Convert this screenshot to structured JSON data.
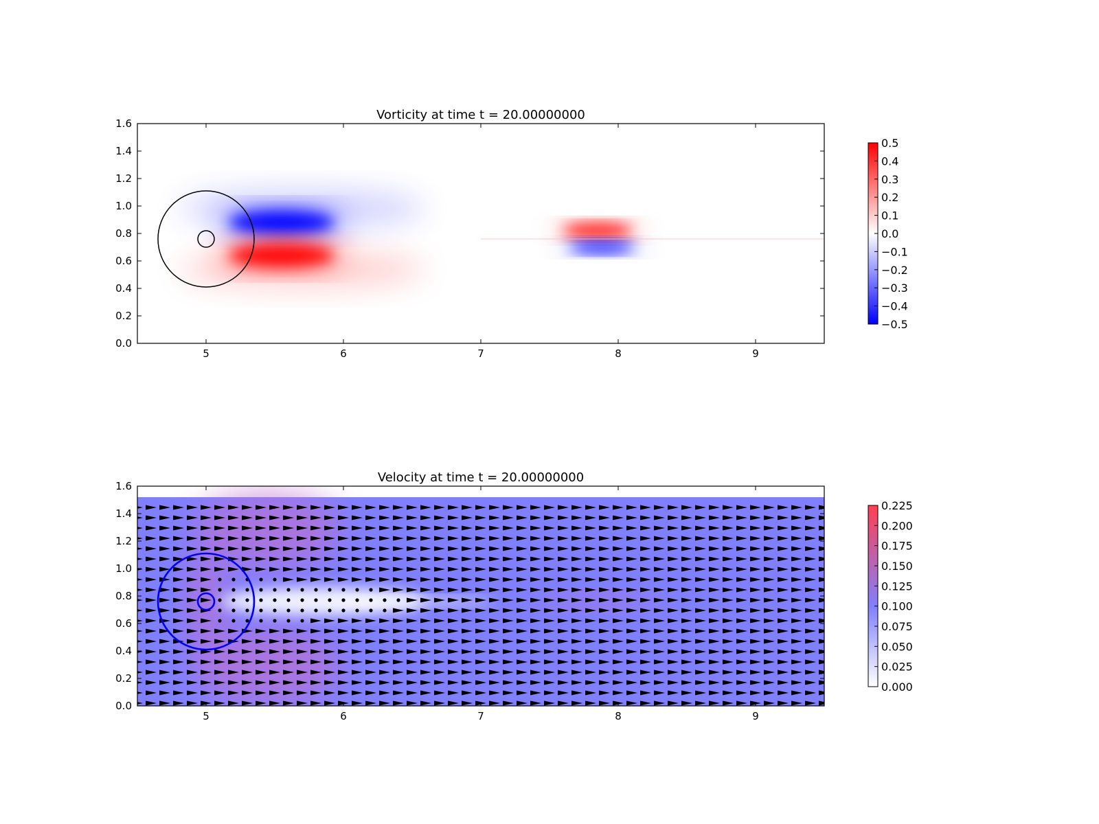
{
  "chart_data": [
    {
      "type": "heatmap",
      "title": "Vorticity at time t =    20.00000000",
      "xlim": [
        4.5,
        9.5
      ],
      "ylim": [
        0.0,
        1.6
      ],
      "xticks": [
        "5",
        "6",
        "7",
        "8",
        "9"
      ],
      "yticks": [
        "0.0",
        "0.2",
        "0.4",
        "0.6",
        "0.8",
        "1.0",
        "1.2",
        "1.4",
        "1.6"
      ],
      "colormap": "bwr",
      "colors": {
        "low": "#0000ff",
        "mid": "#ffffff",
        "high": "#ff0000"
      },
      "colorbar": {
        "range": [
          -0.5,
          0.5
        ],
        "ticks": [
          "0.5",
          "0.4",
          "0.3",
          "0.2",
          "0.1",
          "0.0",
          "−0.1",
          "−0.2",
          "−0.3",
          "−0.4",
          "−0.5"
        ]
      },
      "features": [
        {
          "kind": "vortex",
          "sign": -1,
          "x": 5.55,
          "y": 0.88,
          "sx": 0.45,
          "sy": 0.1
        },
        {
          "kind": "vortex",
          "sign": 1,
          "x": 5.55,
          "y": 0.64,
          "sx": 0.45,
          "sy": 0.1
        },
        {
          "kind": "vortex",
          "sign": 1,
          "x": 7.85,
          "y": 0.82,
          "sx": 0.3,
          "sy": 0.055
        },
        {
          "kind": "vortex",
          "sign": -1,
          "x": 7.88,
          "y": 0.7,
          "sx": 0.28,
          "sy": 0.045
        }
      ],
      "circles": [
        {
          "cx": 5.0,
          "cy": 0.76,
          "r": 0.35,
          "color": "#000000"
        },
        {
          "cx": 5.0,
          "cy": 0.76,
          "r": 0.06,
          "color": "#000000"
        }
      ]
    },
    {
      "type": "heatmap",
      "title": "Velocity at time t =    20.00000000",
      "xlim": [
        4.5,
        9.5
      ],
      "ylim": [
        0.0,
        1.6
      ],
      "xticks": [
        "5",
        "6",
        "7",
        "8",
        "9"
      ],
      "yticks": [
        "0.0",
        "0.2",
        "0.4",
        "0.6",
        "0.8",
        "1.0",
        "1.2",
        "1.4",
        "1.6"
      ],
      "field_top": 1.52,
      "colormap": "white-blue-red",
      "colors": {
        "low": "#ffffff",
        "mid": "#8080ff",
        "high": "#ff4050",
        "quiver": "#000000"
      },
      "base_speed": 0.1,
      "colorbar": {
        "range": [
          0.0,
          0.225
        ],
        "ticks": [
          "0.225",
          "0.200",
          "0.175",
          "0.150",
          "0.125",
          "0.100",
          "0.075",
          "0.050",
          "0.025",
          "0.000"
        ]
      },
      "circles": [
        {
          "cx": 5.0,
          "cy": 0.76,
          "r": 0.35,
          "color": "#0000ee"
        },
        {
          "cx": 5.0,
          "cy": 0.76,
          "r": 0.06,
          "color": "#0000ee"
        }
      ]
    }
  ]
}
